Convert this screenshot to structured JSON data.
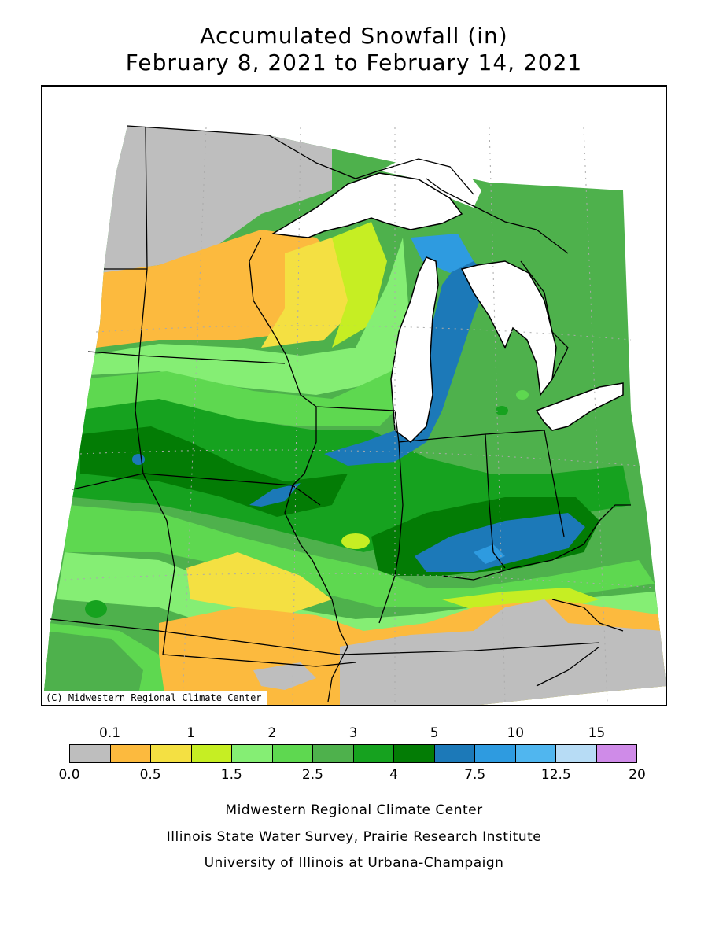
{
  "title": {
    "line1": "Accumulated Snowfall (in)",
    "line2": "February 8, 2021 to February 14, 2021"
  },
  "map": {
    "copyright": "(C) Midwestern Regional Climate Center",
    "no_data_color": "#ffffff",
    "water_color": "#ffffff"
  },
  "legend": {
    "bins": [
      {
        "from": "0.0",
        "to": "0.1",
        "color": "#bebebe"
      },
      {
        "from": "0.1",
        "to": "0.5",
        "color": "#fcba3e"
      },
      {
        "from": "0.5",
        "to": "1",
        "color": "#f4e042"
      },
      {
        "from": "1",
        "to": "1.5",
        "color": "#c6ee23"
      },
      {
        "from": "1.5",
        "to": "2",
        "color": "#85ee74"
      },
      {
        "from": "2",
        "to": "2.5",
        "color": "#5ed850"
      },
      {
        "from": "2.5",
        "to": "3",
        "color": "#4eb14c"
      },
      {
        "from": "3",
        "to": "4",
        "color": "#16a21f"
      },
      {
        "from": "4",
        "to": "5",
        "color": "#037c05"
      },
      {
        "from": "5",
        "to": "7.5",
        "color": "#1c79b8"
      },
      {
        "from": "7.5",
        "to": "10",
        "color": "#2e9be0"
      },
      {
        "from": "10",
        "to": "12.5",
        "color": "#50b6ef"
      },
      {
        "from": "12.5",
        "to": "15",
        "color": "#b7dcf5"
      },
      {
        "from": "15",
        "to": "20",
        "color": "#cf8be8"
      }
    ],
    "top_labels": [
      "0.1",
      "1",
      "2",
      "3",
      "5",
      "10",
      "15"
    ],
    "bottom_labels": [
      "0.0",
      "0.5",
      "1.5",
      "2.5",
      "4",
      "7.5",
      "12.5",
      "20"
    ]
  },
  "credits": {
    "line1": "Midwestern Regional Climate Center",
    "line2": "Illinois State Water Survey, Prairie Research Institute",
    "line3": "University of Illinois at Urbana-Champaign"
  }
}
